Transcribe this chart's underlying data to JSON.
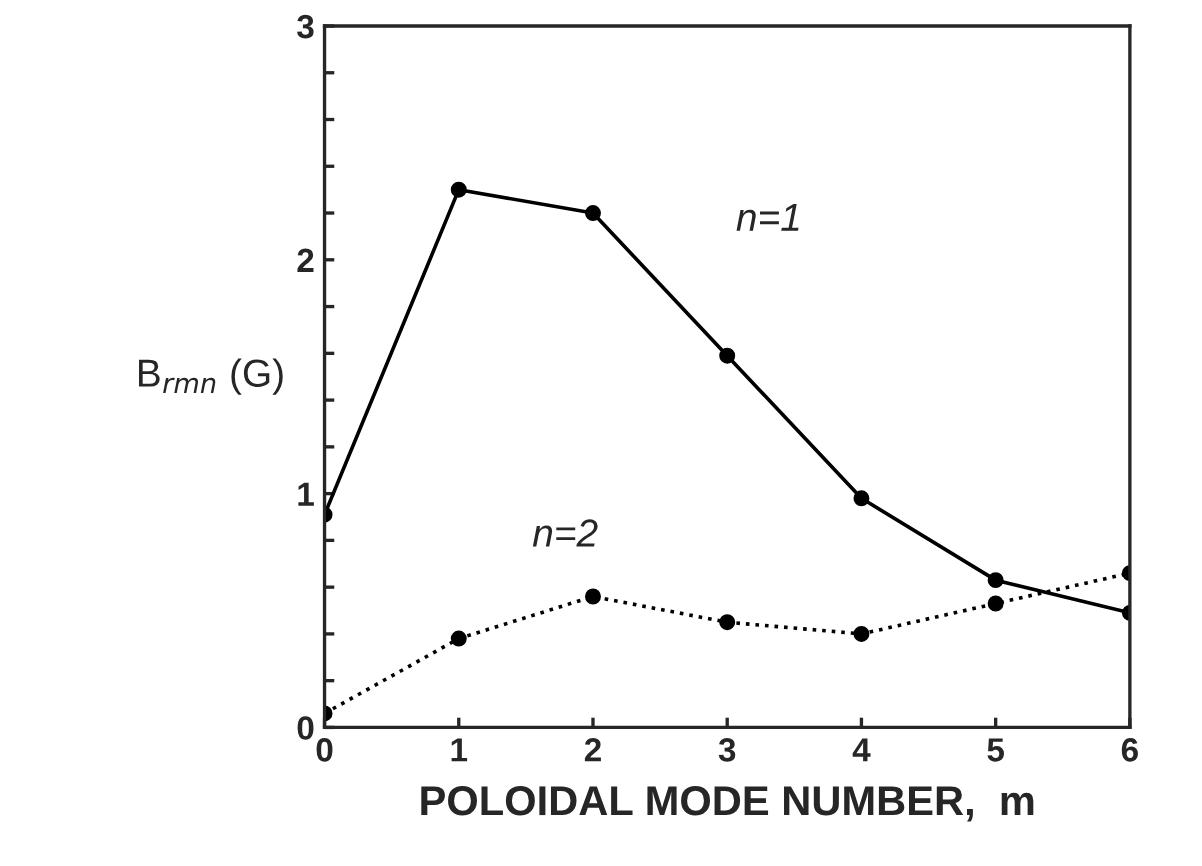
{
  "chart_data": {
    "type": "line",
    "xlabel": "POLOIDAL MODE NUMBER,  m",
    "ylabel": "B$_{rmn}$ (G)",
    "x": [
      0,
      1,
      2,
      3,
      4,
      5,
      6
    ],
    "series": [
      {
        "name": "n=1",
        "color": "#000000",
        "line_style": "solid",
        "values": [
          0.91,
          2.3,
          2.2,
          1.59,
          0.98,
          0.63,
          0.49
        ]
      },
      {
        "name": "n=2",
        "color": "#000000",
        "line_style": "dotted",
        "values": [
          0.06,
          0.38,
          0.56,
          0.45,
          0.4,
          0.53,
          0.66
        ]
      }
    ],
    "marker": "circle",
    "xlim": [
      0,
      6
    ],
    "xticks": [
      0,
      1,
      2,
      3,
      4,
      5,
      6
    ],
    "ylim": [
      0,
      3
    ],
    "yticks": [
      0,
      {
        "value": 0.2,
        "label": null
      },
      {
        "value": 0.4,
        "label": null
      },
      {
        "value": 0.6,
        "label": null
      },
      {
        "value": 0.8,
        "label": null
      },
      1,
      {
        "value": 1.2,
        "label": null
      },
      {
        "value": 1.4,
        "label": null
      },
      {
        "value": 1.6,
        "label": null
      },
      {
        "value": 1.8,
        "label": null
      },
      2,
      {
        "value": 2.2,
        "label": null
      },
      {
        "value": 2.4,
        "label": null
      },
      {
        "value": 2.6,
        "label": null
      },
      {
        "value": 2.8,
        "label": null
      },
      3
    ],
    "grid": false,
    "legend": false
  }
}
